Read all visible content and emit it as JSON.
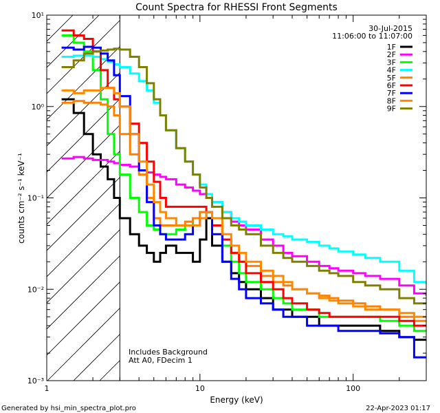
{
  "footer": {
    "generated_by": "Generated by hsi_min_spectra_plot.pro",
    "timestamp": "22-Apr-2023 01:17"
  },
  "chart_data": {
    "type": "line",
    "title": "Count Spectra for RHESSI Front Segments",
    "xlabel": "Energy (keV)",
    "ylabel": "counts cm⁻² s⁻¹ keV⁻¹",
    "xscale": "log",
    "yscale": "log",
    "xlim": [
      1.0,
      300.0
    ],
    "ylim": [
      0.001,
      10.0
    ],
    "x_ticks": [
      "1",
      "10",
      "100"
    ],
    "y_ticks": [
      "10⁻³",
      "10⁻²",
      "10⁻¹",
      "10⁰",
      "10¹"
    ],
    "date": "30-Jul-2015",
    "time_range": "11:06:00 to 11:07:00",
    "annotations": [
      "Includes Background",
      "Att A0, FDecim 1"
    ],
    "excluded_region": {
      "from": 1.0,
      "to": 3.0,
      "style": "hatched"
    },
    "legend_position": "top-right",
    "x": [
      1.25,
      1.5,
      1.75,
      2.0,
      2.25,
      2.5,
      2.75,
      3.0,
      3.5,
      4.0,
      4.5,
      5.0,
      5.5,
      6.0,
      7.0,
      8.0,
      9.0,
      10.0,
      11.0,
      12.0,
      14.0,
      16.0,
      18.0,
      20.0,
      25.0,
      30.0,
      35.0,
      40.0,
      50.0,
      60.0,
      70.0,
      80.0,
      100.0,
      120.0,
      150.0,
      200.0,
      250.0,
      300.0
    ],
    "series": [
      {
        "name": "1F",
        "color": "#000000",
        "values": [
          1.2,
          0.85,
          0.5,
          0.3,
          0.22,
          0.16,
          0.1,
          0.06,
          0.04,
          0.03,
          0.025,
          0.02,
          0.025,
          0.03,
          0.025,
          0.025,
          0.02,
          0.035,
          0.06,
          0.03,
          0.02,
          0.015,
          0.012,
          0.01,
          0.008,
          0.006,
          0.006,
          0.005,
          0.005,
          0.004,
          0.004,
          0.004,
          0.004,
          0.004,
          0.0035,
          0.003,
          0.0028,
          0.0028
        ]
      },
      {
        "name": "2F",
        "color": "#ff00ff",
        "values": [
          0.27,
          0.28,
          0.27,
          0.26,
          0.26,
          0.25,
          0.24,
          0.23,
          0.22,
          0.2,
          0.19,
          0.18,
          0.17,
          0.16,
          0.14,
          0.13,
          0.12,
          0.11,
          0.1,
          0.09,
          0.07,
          0.055,
          0.05,
          0.045,
          0.035,
          0.03,
          0.025,
          0.023,
          0.02,
          0.018,
          0.017,
          0.016,
          0.015,
          0.014,
          0.013,
          0.011,
          0.009,
          0.0085
        ]
      },
      {
        "name": "3F",
        "color": "#00ff00",
        "values": [
          6.0,
          5.0,
          4.0,
          2.5,
          1.2,
          0.5,
          0.3,
          0.18,
          0.1,
          0.07,
          0.05,
          0.045,
          0.04,
          0.04,
          0.045,
          0.05,
          0.06,
          0.07,
          0.07,
          0.05,
          0.03,
          0.02,
          0.015,
          0.012,
          0.01,
          0.008,
          0.007,
          0.006,
          0.006,
          0.005,
          0.005,
          0.005,
          0.005,
          0.005,
          0.0045,
          0.004,
          0.0035,
          0.0035
        ]
      },
      {
        "name": "4F",
        "color": "#00ffff",
        "values": [
          3.5,
          3.6,
          3.6,
          3.5,
          3.3,
          3.1,
          2.9,
          2.7,
          2.3,
          1.9,
          1.5,
          1.1,
          0.8,
          0.55,
          0.35,
          0.25,
          0.18,
          0.14,
          0.11,
          0.09,
          0.07,
          0.06,
          0.055,
          0.05,
          0.045,
          0.04,
          0.038,
          0.035,
          0.033,
          0.03,
          0.028,
          0.026,
          0.024,
          0.022,
          0.02,
          0.016,
          0.012,
          0.0115
        ]
      },
      {
        "name": "5F",
        "color": "#ff8000",
        "values": [
          1.1,
          1.15,
          1.1,
          1.1,
          1.05,
          1.0,
          0.8,
          0.5,
          0.3,
          0.18,
          0.1,
          0.06,
          0.05,
          0.05,
          0.05,
          0.055,
          0.06,
          0.07,
          0.07,
          0.05,
          0.035,
          0.025,
          0.02,
          0.018,
          0.014,
          0.012,
          0.011,
          0.01,
          0.009,
          0.0085,
          0.008,
          0.0075,
          0.007,
          0.0065,
          0.006,
          0.005,
          0.0045,
          0.0045
        ]
      },
      {
        "name": "6F",
        "color": "#ff0000",
        "values": [
          6.8,
          6.0,
          5.5,
          4.0,
          2.5,
          1.6,
          1.2,
          1.0,
          0.65,
          0.4,
          0.25,
          0.15,
          0.1,
          0.08,
          0.08,
          0.08,
          0.08,
          0.08,
          0.07,
          0.05,
          0.035,
          0.025,
          0.02,
          0.015,
          0.012,
          0.01,
          0.008,
          0.007,
          0.006,
          0.0055,
          0.005,
          0.005,
          0.005,
          0.005,
          0.005,
          0.0045,
          0.004,
          0.004
        ]
      },
      {
        "name": "7F",
        "color": "#0000ff",
        "values": [
          4.4,
          4.2,
          4.5,
          4.4,
          3.8,
          3.2,
          2.2,
          1.3,
          0.5,
          0.2,
          0.09,
          0.05,
          0.04,
          0.035,
          0.035,
          0.04,
          0.05,
          0.06,
          0.07,
          0.04,
          0.02,
          0.013,
          0.01,
          0.008,
          0.007,
          0.006,
          0.005,
          0.005,
          0.004,
          0.004,
          0.004,
          0.0035,
          0.0035,
          0.0035,
          0.0033,
          0.003,
          0.0018,
          0.0018
        ]
      },
      {
        "name": "8F",
        "color": "#ff8800",
        "values": [
          1.5,
          1.4,
          1.5,
          1.5,
          1.6,
          1.6,
          1.4,
          1.0,
          0.5,
          0.25,
          0.14,
          0.09,
          0.07,
          0.06,
          0.05,
          0.05,
          0.05,
          0.06,
          0.07,
          0.06,
          0.04,
          0.03,
          0.025,
          0.02,
          0.016,
          0.014,
          0.012,
          0.01,
          0.009,
          0.008,
          0.0075,
          0.007,
          0.0065,
          0.006,
          0.006,
          0.0055,
          0.005,
          0.005
        ]
      },
      {
        "name": "9F",
        "color": "#808000",
        "values": [
          2.7,
          3.2,
          3.8,
          4.0,
          4.1,
          4.2,
          4.3,
          4.2,
          3.5,
          2.7,
          1.8,
          1.2,
          0.8,
          0.55,
          0.35,
          0.25,
          0.18,
          0.13,
          0.1,
          0.08,
          0.06,
          0.05,
          0.045,
          0.04,
          0.03,
          0.025,
          0.022,
          0.02,
          0.018,
          0.016,
          0.015,
          0.014,
          0.012,
          0.011,
          0.01,
          0.008,
          0.007,
          0.007
        ]
      }
    ]
  }
}
